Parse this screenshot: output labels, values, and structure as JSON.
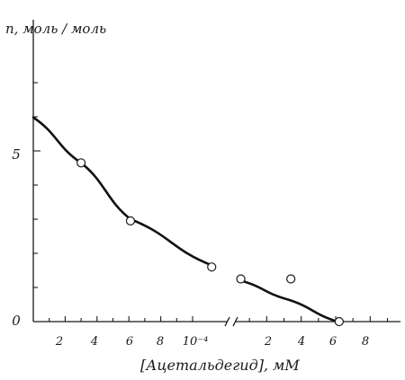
{
  "chart_data": {
    "type": "scatter",
    "ylabel": "n, моль / моль",
    "xlabel": "[Ацетальдегид], мМ",
    "ylim": [
      0,
      7
    ],
    "x_scale": "broken: first segment ×10⁻⁴ мМ (0–10), second segment mM (0–10)",
    "y_tick_labels": [
      "0",
      "5"
    ],
    "x_tick_labels_left": [
      "2",
      "4",
      "6",
      "8",
      "10⁻⁴"
    ],
    "x_tick_labels_right": [
      "2",
      "4",
      "6",
      "8"
    ],
    "x_exponent_label": "−4",
    "grid": false,
    "series": [
      {
        "segment": "low (×10⁻⁴ мМ)",
        "points": [
          {
            "x": 3.0,
            "y": 4.65
          },
          {
            "x": 6.1,
            "y": 2.95
          },
          {
            "x": 11.2,
            "y": 1.6
          }
        ],
        "fit_curve": [
          {
            "x": 0.0,
            "y": 5.98
          },
          {
            "x": 3.0,
            "y": 4.65
          },
          {
            "x": 6.1,
            "y": 3.0
          },
          {
            "x": 11.2,
            "y": 1.65
          }
        ]
      },
      {
        "segment": "high (мМ)",
        "points": [
          {
            "x": 0.5,
            "y": 1.25
          },
          {
            "x": 3.4,
            "y": 1.25
          },
          {
            "x": 6.2,
            "y": 0.0
          }
        ],
        "fit_curve": [
          {
            "x": 0.5,
            "y": 1.2
          },
          {
            "x": 3.2,
            "y": 0.65
          },
          {
            "x": 6.1,
            "y": 0.0
          }
        ]
      }
    ]
  }
}
